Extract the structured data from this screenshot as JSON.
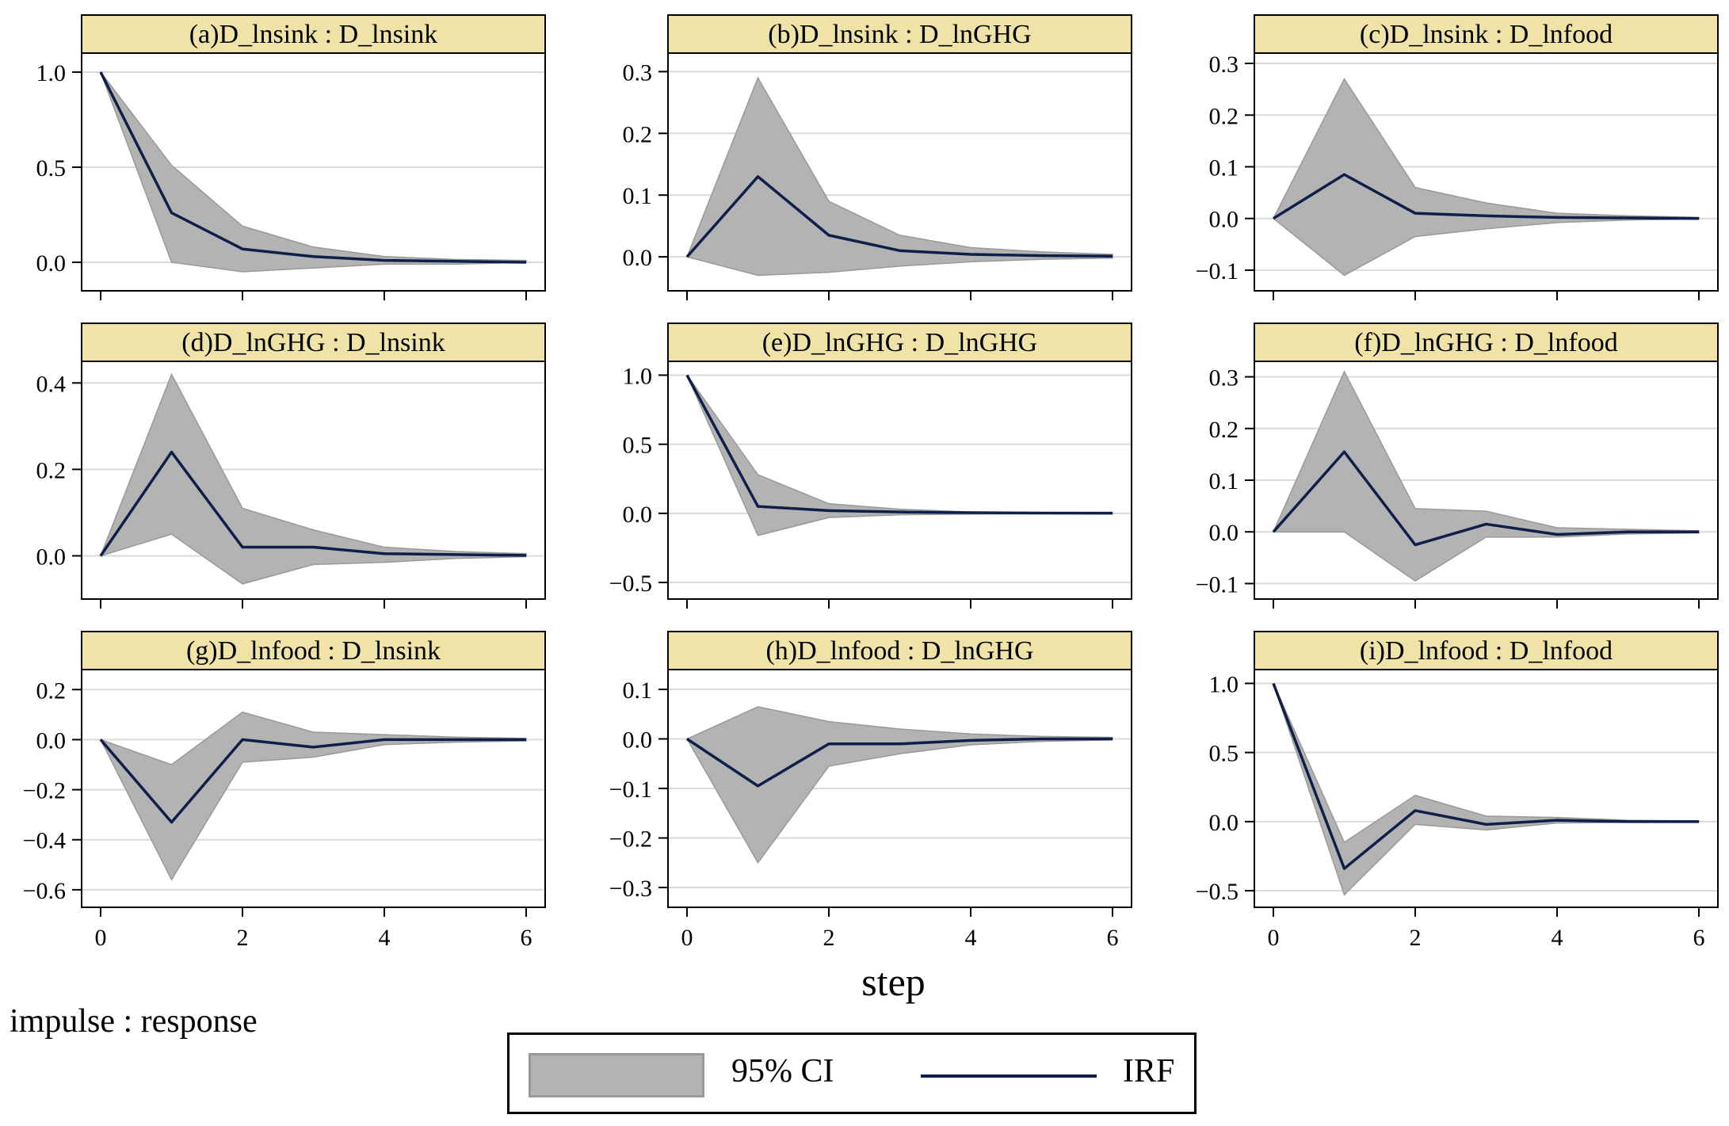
{
  "chart_data": {
    "type": "line",
    "layout": "3x3 grid of panels",
    "shared_x": [
      0,
      1,
      2,
      3,
      4,
      5,
      6
    ],
    "xticks": [
      0,
      2,
      4,
      6
    ],
    "xlabel": "step",
    "note": "impulse : response",
    "legend": [
      {
        "name": "95% CI",
        "kind": "band"
      },
      {
        "name": "IRF",
        "kind": "line"
      }
    ],
    "colors": {
      "band": "#b3b3b3",
      "band_edge": "#999999",
      "line": "#0f1f4a",
      "title_bg": "#efe3a8",
      "grid": "#d9d9d9"
    },
    "panels": [
      {
        "title": "(a)D_lnsink : D_lnsink",
        "ylim": [
          -0.15,
          1.1
        ],
        "yticks": [
          0.0,
          0.5,
          1.0
        ],
        "irf": [
          1.0,
          0.26,
          0.07,
          0.03,
          0.01,
          0.005,
          0.0
        ],
        "upper": [
          1.0,
          0.51,
          0.19,
          0.08,
          0.03,
          0.015,
          0.01
        ],
        "lower": [
          1.0,
          0.0,
          -0.05,
          -0.03,
          -0.01,
          -0.01,
          0.0
        ]
      },
      {
        "title": "(b)D_lnsink : D_lnGHG",
        "ylim": [
          -0.055,
          0.33
        ],
        "yticks": [
          0.0,
          0.1,
          0.2,
          0.3
        ],
        "irf": [
          0.0,
          0.13,
          0.035,
          0.01,
          0.004,
          0.002,
          0.001
        ],
        "upper": [
          0.0,
          0.29,
          0.09,
          0.035,
          0.015,
          0.008,
          0.004
        ],
        "lower": [
          0.0,
          -0.03,
          -0.025,
          -0.015,
          -0.008,
          -0.004,
          -0.002
        ]
      },
      {
        "title": "(c)D_lnsink : D_lnfood",
        "ylim": [
          -0.14,
          0.32
        ],
        "yticks": [
          -0.1,
          0.0,
          0.1,
          0.2,
          0.3
        ],
        "irf": [
          0.0,
          0.085,
          0.01,
          0.005,
          0.002,
          0.001,
          0.0
        ],
        "upper": [
          0.0,
          0.27,
          0.06,
          0.03,
          0.01,
          0.005,
          0.002
        ],
        "lower": [
          0.0,
          -0.11,
          -0.035,
          -0.02,
          -0.008,
          -0.003,
          -0.001
        ]
      },
      {
        "title": "(d)D_lnGHG : D_lnsink",
        "ylim": [
          -0.1,
          0.45
        ],
        "yticks": [
          0.0,
          0.2,
          0.4
        ],
        "irf": [
          0.0,
          0.24,
          0.02,
          0.02,
          0.005,
          0.003,
          0.001
        ],
        "upper": [
          0.0,
          0.42,
          0.11,
          0.06,
          0.02,
          0.01,
          0.005
        ],
        "lower": [
          0.0,
          0.05,
          -0.065,
          -0.02,
          -0.015,
          -0.006,
          -0.002
        ]
      },
      {
        "title": "(e)D_lnGHG : D_lnGHG",
        "ylim": [
          -0.62,
          1.1
        ],
        "yticks": [
          -0.5,
          0.0,
          0.5,
          1.0
        ],
        "irf": [
          1.0,
          0.05,
          0.02,
          0.01,
          0.005,
          0.002,
          0.001
        ],
        "upper": [
          1.0,
          0.28,
          0.07,
          0.03,
          0.01,
          0.005,
          0.002
        ],
        "lower": [
          1.0,
          -0.16,
          -0.03,
          -0.01,
          -0.005,
          -0.002,
          -0.001
        ]
      },
      {
        "title": "(f)D_lnGHG : D_lnfood",
        "ylim": [
          -0.13,
          0.33
        ],
        "yticks": [
          -0.1,
          0.0,
          0.1,
          0.2,
          0.3
        ],
        "irf": [
          0.0,
          0.155,
          -0.025,
          0.015,
          -0.005,
          0.0,
          0.0
        ],
        "upper": [
          0.0,
          0.31,
          0.045,
          0.04,
          0.008,
          0.005,
          0.002
        ],
        "lower": [
          0.0,
          0.0,
          -0.095,
          -0.01,
          -0.01,
          -0.004,
          -0.002
        ]
      },
      {
        "title": "(g)D_lnfood : D_lnsink",
        "ylim": [
          -0.67,
          0.28
        ],
        "yticks": [
          -0.6,
          -0.4,
          -0.2,
          0.0,
          0.2
        ],
        "irf": [
          0.0,
          -0.33,
          0.0,
          -0.03,
          0.0,
          0.0,
          0.0
        ],
        "upper": [
          0.0,
          -0.1,
          0.11,
          0.03,
          0.02,
          0.01,
          0.005
        ],
        "lower": [
          0.0,
          -0.56,
          -0.09,
          -0.07,
          -0.02,
          -0.01,
          -0.005
        ]
      },
      {
        "title": "(h)D_lnfood : D_lnGHG",
        "ylim": [
          -0.34,
          0.14
        ],
        "yticks": [
          -0.3,
          -0.2,
          -0.1,
          0.0,
          0.1
        ],
        "irf": [
          0.0,
          -0.095,
          -0.01,
          -0.01,
          -0.003,
          0.0,
          0.0
        ],
        "upper": [
          0.0,
          0.065,
          0.035,
          0.02,
          0.01,
          0.005,
          0.003
        ],
        "lower": [
          0.0,
          -0.25,
          -0.055,
          -0.03,
          -0.012,
          -0.005,
          -0.002
        ]
      },
      {
        "title": "(i)D_lnfood : D_lnfood",
        "ylim": [
          -0.62,
          1.1
        ],
        "yticks": [
          -0.5,
          0.0,
          0.5,
          1.0
        ],
        "irf": [
          1.0,
          -0.34,
          0.08,
          -0.02,
          0.01,
          0.0,
          0.0
        ],
        "upper": [
          1.0,
          -0.15,
          0.19,
          0.04,
          0.03,
          0.01,
          0.005
        ],
        "lower": [
          1.0,
          -0.53,
          -0.02,
          -0.06,
          -0.01,
          -0.005,
          -0.002
        ]
      }
    ]
  }
}
